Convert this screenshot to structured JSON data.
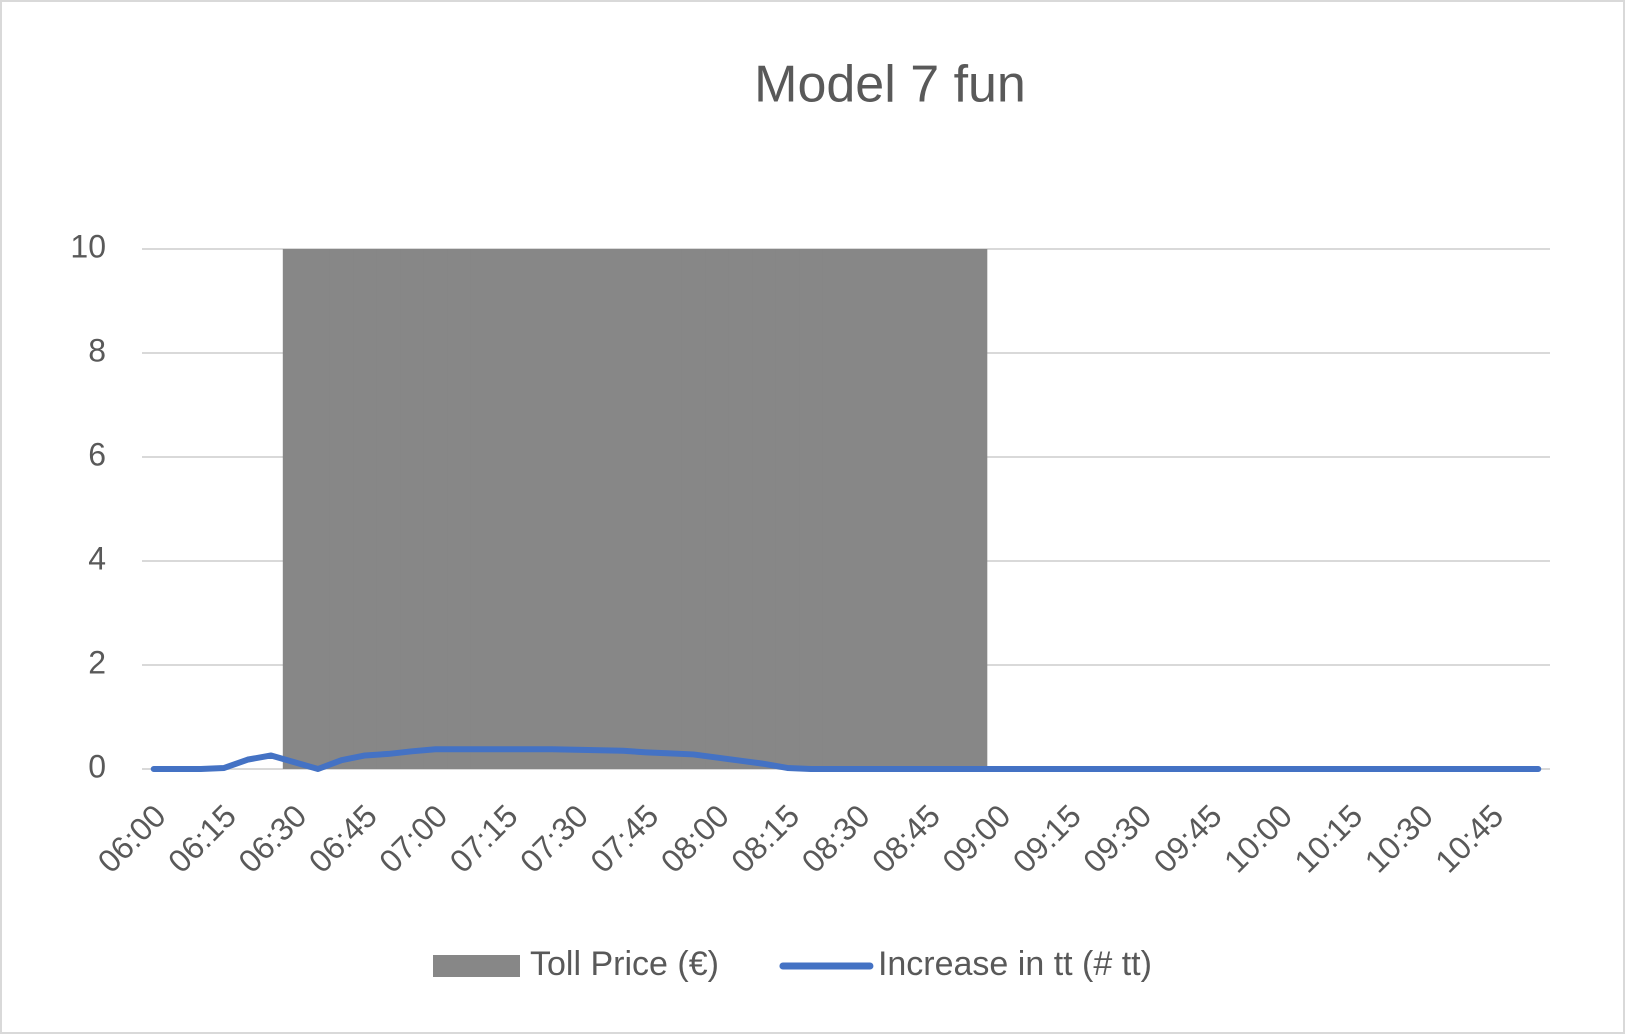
{
  "chart_data": {
    "type": "bar+line",
    "title": "Model 7 fun",
    "categories": [
      "06:00",
      null,
      null,
      "06:15",
      null,
      null,
      "06:30",
      null,
      null,
      "06:45",
      null,
      null,
      "07:00",
      null,
      null,
      "07:15",
      null,
      null,
      "07:30",
      null,
      null,
      "07:45",
      null,
      null,
      "08:00",
      null,
      null,
      "08:15",
      null,
      null,
      "08:30",
      null,
      null,
      "08:45",
      null,
      null,
      "09:00",
      null,
      null,
      "09:15",
      null,
      null,
      "09:30",
      null,
      null,
      "09:45",
      null,
      null,
      "10:00",
      null,
      null,
      "10:15",
      null,
      null,
      "10:30",
      null,
      null,
      "10:45",
      null,
      null
    ],
    "series": [
      {
        "name": "Toll Price (€)",
        "type": "bar",
        "color": "#878787",
        "values": [
          0,
          0,
          0,
          0,
          0,
          0,
          10,
          10,
          10,
          10,
          10,
          10,
          10,
          10,
          10,
          10,
          10,
          10,
          10,
          10,
          10,
          10,
          10,
          10,
          10,
          10,
          10,
          10,
          10,
          10,
          10,
          10,
          10,
          10,
          10,
          10,
          0,
          0,
          0,
          0,
          0,
          0,
          0,
          0,
          0,
          0,
          0,
          0,
          0,
          0,
          0,
          0,
          0,
          0,
          0,
          0,
          0,
          0,
          0,
          0
        ]
      },
      {
        "name": "Increase in tt (# tt)",
        "type": "line",
        "color": "#4472c4",
        "values": [
          0,
          0,
          0,
          0.02,
          0.18,
          0.26,
          0.13,
          0,
          0.17,
          0.26,
          0.29,
          0.34,
          0.38,
          0.38,
          0.38,
          0.38,
          0.38,
          0.38,
          0.37,
          0.36,
          0.35,
          0.32,
          0.3,
          0.28,
          0.22,
          0.16,
          0.1,
          0.02,
          0,
          0,
          0,
          0,
          0,
          0,
          0,
          0,
          0,
          0,
          0,
          0,
          0,
          0,
          0,
          0,
          0,
          0,
          0,
          0,
          0,
          0,
          0,
          0,
          0,
          0,
          0,
          0,
          0,
          0,
          0,
          0
        ]
      }
    ],
    "ylim": [
      0,
      10
    ],
    "yticks": [
      0,
      2,
      4,
      6,
      8,
      10
    ],
    "grid": true,
    "legend": "bottom"
  }
}
